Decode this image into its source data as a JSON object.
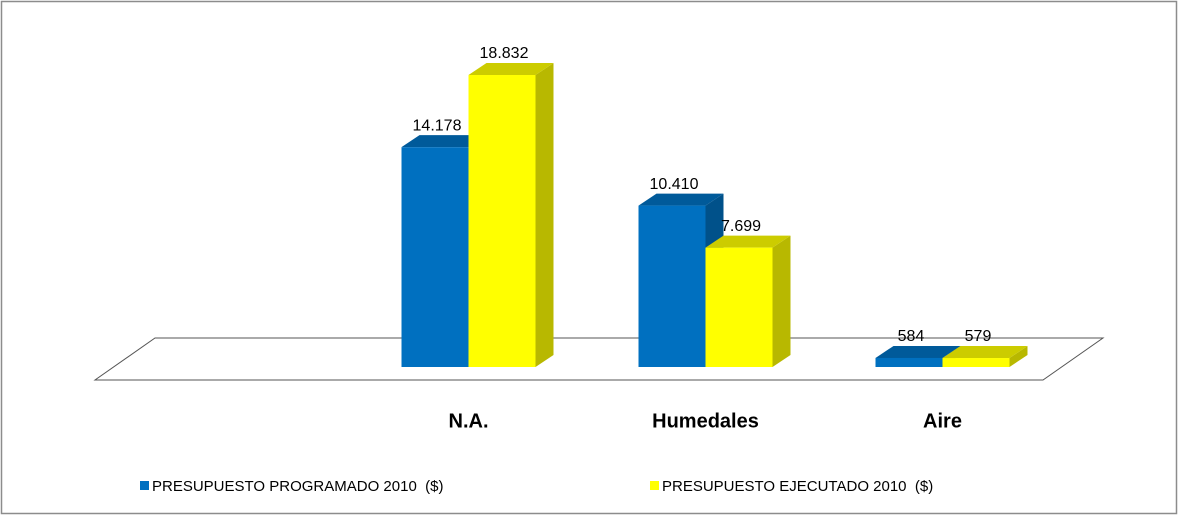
{
  "chart_data": {
    "type": "bar3d",
    "categories": [
      null,
      "N.A.",
      "Humedales",
      "Aire"
    ],
    "series": [
      {
        "name": "PRESUPUESTO PROGRAMADO 2010  ($)",
        "color": "#0070c0",
        "values": [
          null,
          14178,
          10410,
          584
        ],
        "value_labels": [
          null,
          "14.178",
          "10.410",
          "584"
        ]
      },
      {
        "name": "PRESUPUESTO EJECUTADO 2010  ($)",
        "color": "#ffff00",
        "values": [
          null,
          18832,
          7699,
          579
        ],
        "value_labels": [
          null,
          "18.832",
          "7.699",
          "579"
        ]
      }
    ],
    "legend": "bottom"
  }
}
